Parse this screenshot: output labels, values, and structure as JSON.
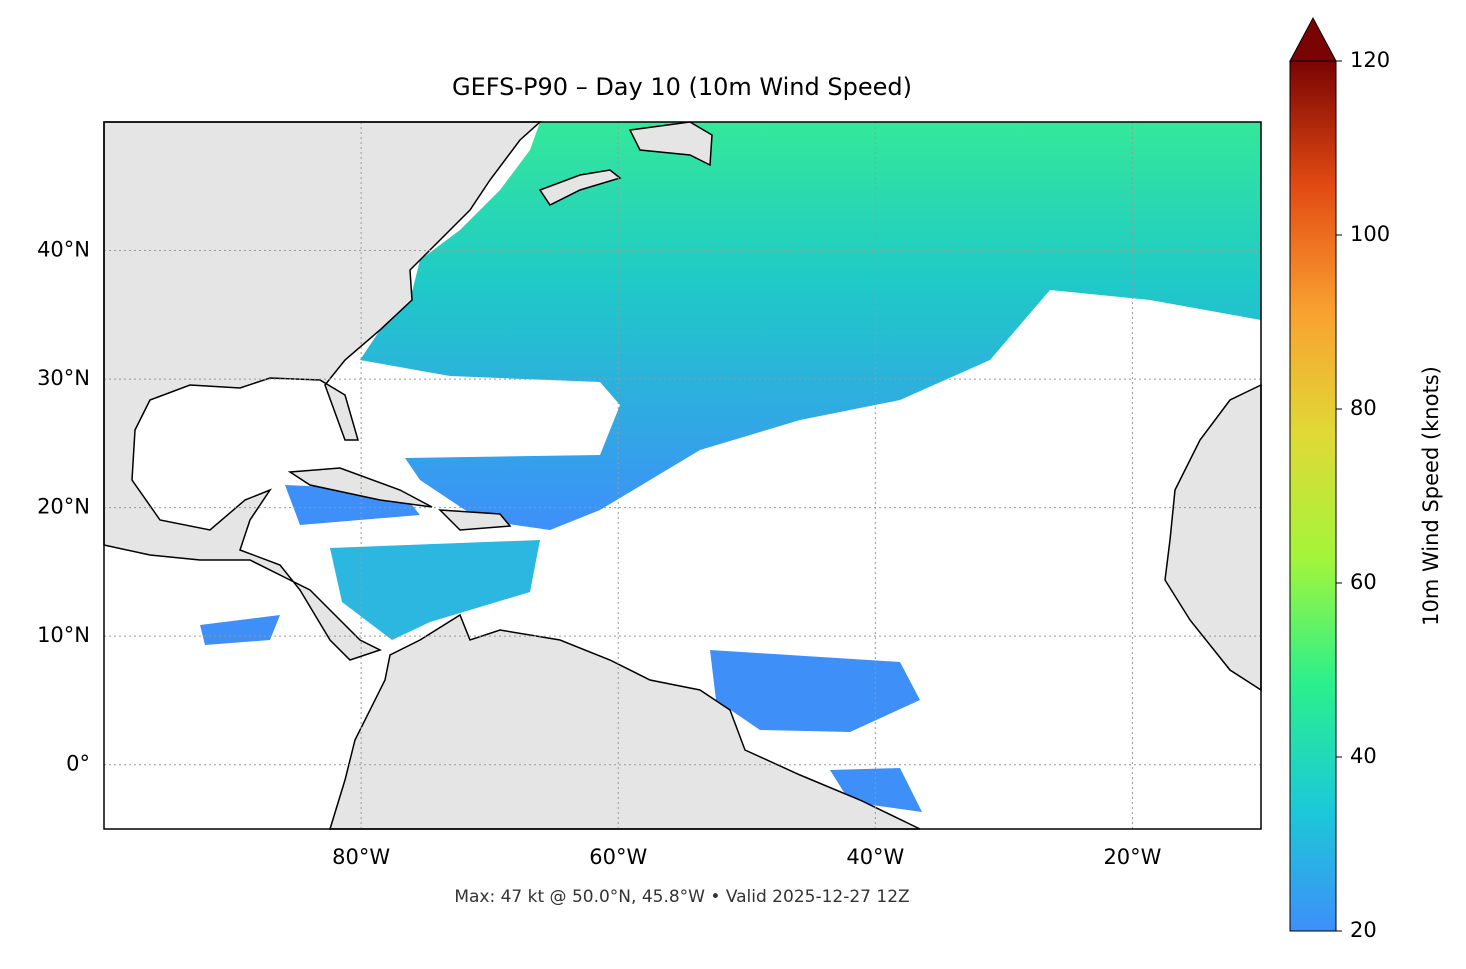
{
  "chart_data": {
    "type": "map",
    "title": "GEFS-P90 – Day 10 (10m Wind Speed)",
    "annotation": "Max: 47 kt @ 50.0°N, 45.8°W • Valid 2025-12-27 12Z",
    "xlim": [
      -100,
      -10
    ],
    "ylim": [
      -5,
      50
    ],
    "xticks": [
      {
        "value": -80,
        "label": "80°W"
      },
      {
        "value": -60,
        "label": "60°W"
      },
      {
        "value": -40,
        "label": "40°W"
      },
      {
        "value": -20,
        "label": "20°W"
      }
    ],
    "yticks": [
      {
        "value": 0,
        "label": "0°"
      },
      {
        "value": 10,
        "label": "10°N"
      },
      {
        "value": 20,
        "label": "20°N"
      },
      {
        "value": 30,
        "label": "30°N"
      },
      {
        "value": 40,
        "label": "40°N"
      }
    ],
    "grid": true,
    "colorbar": {
      "label": "10m Wind Speed (knots)",
      "lim": [
        20,
        120
      ],
      "ticks": [
        20,
        40,
        60,
        80,
        100,
        120
      ],
      "extend": "max",
      "colors": [
        "#3e8ffa",
        "#1bcad6",
        "#2bf08c",
        "#a3f53b",
        "#e0d936",
        "#f9a030",
        "#e24a12",
        "#7a0403"
      ]
    }
  }
}
